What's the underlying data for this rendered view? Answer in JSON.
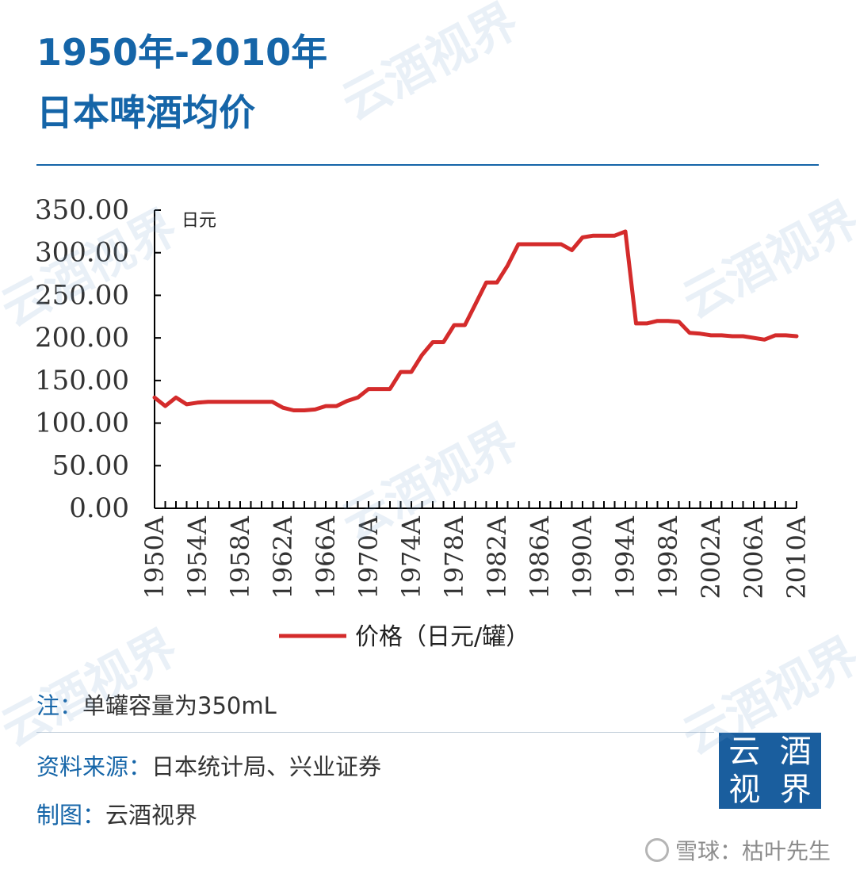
{
  "title_line1": "1950年-2010年",
  "title_line2": "日本啤酒均价",
  "note": {
    "label": "注：",
    "text": "单罐容量为350mL"
  },
  "source": {
    "label": "资料来源：",
    "text": "日本统计局、兴业证券"
  },
  "maker": {
    "label": "制图：",
    "text": "云酒视界"
  },
  "logo_chars": [
    "云",
    "酒",
    "视",
    "界"
  ],
  "watermark_text": "云酒视界",
  "footer_credit": "雪球：枯叶先生",
  "chart_data": {
    "type": "line",
    "title": "",
    "xlabel": "",
    "ylabel": "日元",
    "ylim": [
      0,
      350
    ],
    "yticks": [
      "0.00",
      "50.00",
      "100.00",
      "150.00",
      "200.00",
      "250.00",
      "300.00",
      "350.00"
    ],
    "xticks": [
      "1950A",
      "1954A",
      "1958A",
      "1962A",
      "1966A",
      "1970A",
      "1974A",
      "1978A",
      "1982A",
      "1986A",
      "1990A",
      "1994A",
      "1998A",
      "2002A",
      "2006A",
      "2010A"
    ],
    "legend_position": "bottom",
    "grid": false,
    "line_color": "#d42b2b",
    "series": [
      {
        "name": "价格（日元/罐）",
        "x": [
          1950,
          1951,
          1952,
          1953,
          1954,
          1955,
          1956,
          1957,
          1958,
          1959,
          1960,
          1961,
          1962,
          1963,
          1964,
          1965,
          1966,
          1967,
          1968,
          1969,
          1970,
          1971,
          1972,
          1973,
          1974,
          1975,
          1976,
          1977,
          1978,
          1979,
          1980,
          1981,
          1982,
          1983,
          1984,
          1985,
          1986,
          1987,
          1988,
          1989,
          1990,
          1991,
          1992,
          1993,
          1994,
          1995,
          1996,
          1997,
          1998,
          1999,
          2000,
          2001,
          2002,
          2003,
          2004,
          2005,
          2006,
          2007,
          2008,
          2009,
          2010
        ],
        "values": [
          130,
          120,
          130,
          122,
          124,
          125,
          125,
          125,
          125,
          125,
          125,
          125,
          118,
          115,
          115,
          116,
          120,
          120,
          126,
          130,
          140,
          140,
          140,
          160,
          160,
          180,
          195,
          195,
          215,
          215,
          240,
          265,
          265,
          285,
          310,
          310,
          310,
          310,
          310,
          303,
          318,
          320,
          320,
          320,
          325,
          217,
          217,
          220,
          220,
          219,
          206,
          205,
          203,
          203,
          202,
          202,
          200,
          198,
          203,
          203,
          202
        ]
      }
    ]
  }
}
